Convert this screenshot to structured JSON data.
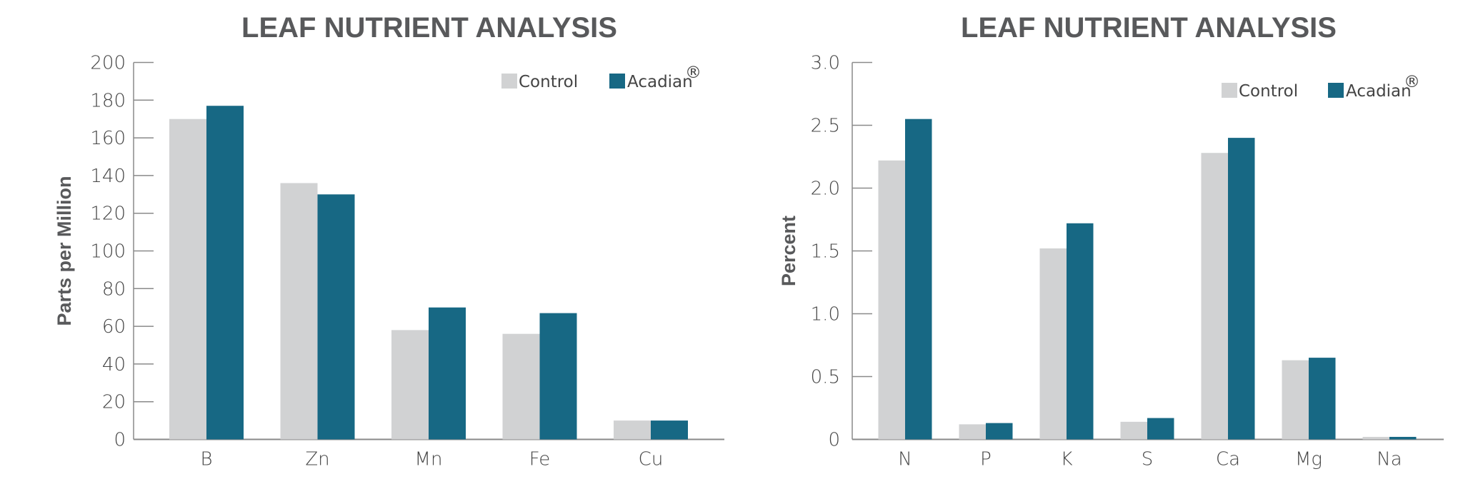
{
  "colors": {
    "control": "#d1d2d3",
    "acadian": "#176884",
    "text": "#58595b",
    "axis": "#8a8a8a"
  },
  "chart_data": [
    {
      "type": "bar",
      "title": "LEAF NUTRIENT ANALYSIS",
      "xlabel": "",
      "ylabel": "Parts per Million",
      "categories": [
        "B",
        "Zn",
        "Mn",
        "Fe",
        "Cu"
      ],
      "ylim": [
        0,
        200
      ],
      "yticks": [
        0,
        20,
        40,
        60,
        80,
        100,
        120,
        140,
        160,
        180,
        200
      ],
      "ytick_labels": [
        "0",
        "20",
        "40",
        "60",
        "80",
        "100",
        "120",
        "140",
        "160",
        "180",
        "200"
      ],
      "legend": {
        "position": "top-right"
      },
      "grid": false,
      "series": [
        {
          "name": "Control",
          "values": [
            170,
            136,
            58,
            56,
            10
          ]
        },
        {
          "name": "Acadian",
          "name_superscript": "®",
          "values": [
            177,
            130,
            70,
            67,
            10
          ]
        }
      ]
    },
    {
      "type": "bar",
      "title": "LEAF NUTRIENT ANALYSIS",
      "xlabel": "",
      "ylabel": "Percent",
      "categories": [
        "N",
        "P",
        "K",
        "S",
        "Ca",
        "Mg",
        "Na"
      ],
      "ylim": [
        0,
        3.0
      ],
      "yticks": [
        0,
        0.5,
        1.0,
        1.5,
        2.0,
        2.5,
        3.0
      ],
      "ytick_labels": [
        "0",
        "0.5",
        "1.0",
        "1.5",
        "2.0",
        "2.5",
        "3.0"
      ],
      "legend": {
        "position": "top-right"
      },
      "grid": false,
      "series": [
        {
          "name": "Control",
          "values": [
            2.22,
            0.12,
            1.52,
            0.14,
            2.28,
            0.63,
            0.02
          ]
        },
        {
          "name": "Acadian",
          "name_superscript": "®",
          "values": [
            2.55,
            0.13,
            1.72,
            0.17,
            2.4,
            0.65,
            0.02
          ]
        }
      ]
    }
  ]
}
